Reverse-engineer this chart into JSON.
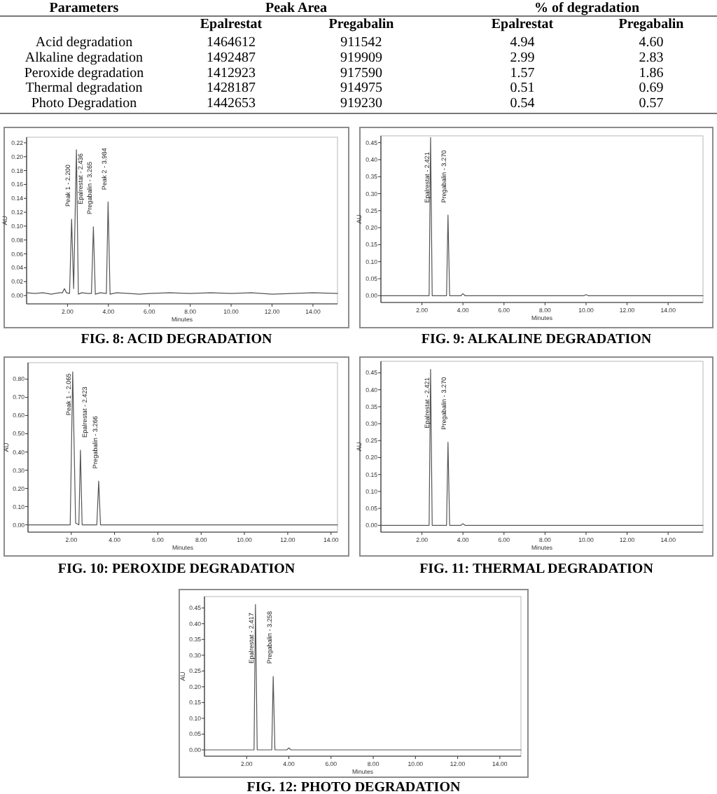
{
  "chart_data": [
    {
      "type": "other",
      "ylabel": "Parameters",
      "annotations": [
        "Peak Area",
        "% of degradation"
      ],
      "categories": [
        "Acid degradation",
        "Alkaline degradation",
        "Peroxide degradation",
        "Thermal degradation",
        "Photo Degradation"
      ],
      "series": [
        {
          "name": "Epalrestat",
          "values": [
            1464612,
            1492487,
            1412923,
            1428187,
            1442653
          ],
          "value_labels": [
            "1464612",
            "1492487",
            "1412923",
            "1428187",
            "1442653"
          ]
        },
        {
          "name": "Pregabalin",
          "values": [
            911542,
            919909,
            917590,
            914975,
            919230
          ],
          "value_labels": [
            "911542",
            "919909",
            "917590",
            "914975",
            "919230"
          ]
        },
        {
          "name": "Epalrestat",
          "values": [
            4.94,
            2.99,
            1.57,
            0.51,
            0.54
          ],
          "value_labels": [
            "4.94",
            "2.99",
            "1.57",
            "0.51",
            "0.54"
          ]
        },
        {
          "name": "Pregabalin",
          "values": [
            4.6,
            2.83,
            1.86,
            0.69,
            0.57
          ],
          "value_labels": [
            "4.60",
            "2.83",
            "1.86",
            "0.69",
            "0.57"
          ]
        }
      ]
    },
    {
      "type": "line",
      "title": "FIG. 8: ACID DEGRADATION",
      "xlabel": "Minutes",
      "ylabel": "AU",
      "xlim": [
        0,
        15.2
      ],
      "ylim": [
        -0.012,
        0.228
      ],
      "xticks": [
        {
          "value": 2,
          "label": "2.00"
        },
        {
          "value": 4,
          "label": "4.00"
        },
        {
          "value": 6,
          "label": "6.00"
        },
        {
          "value": 8,
          "label": "8.00"
        },
        {
          "value": 10,
          "label": "10.00"
        },
        {
          "value": 12,
          "label": "12.00"
        },
        {
          "value": 14,
          "label": "14.00"
        }
      ],
      "yticks": [
        {
          "value": 0,
          "label": "0.00"
        },
        {
          "value": 0.02,
          "label": "0.02"
        },
        {
          "value": 0.04,
          "label": "0.04"
        },
        {
          "value": 0.06,
          "label": "0.06"
        },
        {
          "value": 0.08,
          "label": "0.08"
        },
        {
          "value": 0.1,
          "label": "0.10"
        },
        {
          "value": 0.12,
          "label": "0.12"
        },
        {
          "value": 0.14,
          "label": "0.14"
        },
        {
          "value": 0.16,
          "label": "0.16"
        },
        {
          "value": 0.18,
          "label": "0.18"
        },
        {
          "value": 0.2,
          "label": "0.20"
        },
        {
          "value": 0.22,
          "label": "0.22"
        }
      ],
      "series": [
        {
          "color": "#555555",
          "x": [
            0,
            0.4,
            0.8,
            1.2,
            1.6,
            1.75,
            1.85,
            1.95,
            2.1,
            2.2,
            2.3,
            2.436,
            2.53,
            2.7,
            3.0,
            3.17,
            3.265,
            3.36,
            3.6,
            3.9,
            3.984,
            4.08,
            4.4,
            5,
            5.5,
            6,
            7,
            8,
            9,
            10,
            11,
            12,
            13,
            14,
            15.2
          ],
          "values": [
            0.004,
            0.003,
            0.004,
            0.002,
            0.004,
            0.004,
            0.01,
            0.004,
            0.003,
            0.11,
            0.01,
            0.21,
            0.002,
            0.004,
            0.003,
            0.003,
            0.099,
            0.002,
            0.004,
            0.003,
            0.135,
            0.002,
            0.004,
            0.003,
            0.002,
            0.003,
            0.004,
            0.003,
            0.004,
            0.003,
            0.004,
            0.002,
            0.003,
            0.004,
            0.003
          ]
        }
      ],
      "annotations": [
        {
          "text": "Peak 1 - 2.200",
          "x": 2.2,
          "y": 0.11
        },
        {
          "text": "Epalrestat - 2.436",
          "x": 2.436,
          "y": 0.21
        },
        {
          "text": "Pregabalin - 3.265",
          "x": 3.265,
          "y": 0.099
        },
        {
          "text": "Peak 2 - 3.984",
          "x": 3.984,
          "y": 0.135
        }
      ]
    },
    {
      "type": "line",
      "title": "FIG. 9: ALKALINE DEGRADATION",
      "xlabel": "Minutes",
      "ylabel": "AU",
      "xlim": [
        0,
        15.7
      ],
      "ylim": [
        -0.02,
        0.47
      ],
      "xticks": [
        {
          "value": 2,
          "label": "2.00"
        },
        {
          "value": 4,
          "label": "4.00"
        },
        {
          "value": 6,
          "label": "6.00"
        },
        {
          "value": 8,
          "label": "8.00"
        },
        {
          "value": 10,
          "label": "10.00"
        },
        {
          "value": 12,
          "label": "12.00"
        },
        {
          "value": 14,
          "label": "14.00"
        }
      ],
      "yticks": [
        {
          "value": 0,
          "label": "0.00"
        },
        {
          "value": 0.05,
          "label": "0.05"
        },
        {
          "value": 0.1,
          "label": "0.10"
        },
        {
          "value": 0.15,
          "label": "0.15"
        },
        {
          "value": 0.2,
          "label": "0.20"
        },
        {
          "value": 0.25,
          "label": "0.25"
        },
        {
          "value": 0.3,
          "label": "0.30"
        },
        {
          "value": 0.35,
          "label": "0.35"
        },
        {
          "value": 0.4,
          "label": "0.40"
        },
        {
          "value": 0.45,
          "label": "0.45"
        }
      ],
      "series": [
        {
          "color": "#555555",
          "x": [
            0,
            2.35,
            2.421,
            2.5,
            3.2,
            3.27,
            3.35,
            3.9,
            4.0,
            4.1,
            9.9,
            10,
            10.1,
            15.7
          ],
          "values": [
            0,
            0,
            0.465,
            0,
            0,
            0.237,
            0,
            0,
            0.006,
            0,
            0,
            0.003,
            0,
            0
          ]
        }
      ],
      "annotations": [
        {
          "text": "Epalrestat - 2.421",
          "x": 2.421,
          "y": 0.465
        },
        {
          "text": "Pregabalin - 3.270",
          "x": 3.27,
          "y": 0.237
        }
      ]
    },
    {
      "type": "line",
      "title": "FIG. 10: PEROXIDE DEGRADATION",
      "xlabel": "Minutes",
      "ylabel": "AU",
      "xlim": [
        0,
        14.3
      ],
      "ylim": [
        -0.04,
        0.89
      ],
      "xticks": [
        {
          "value": 2,
          "label": "2.00"
        },
        {
          "value": 4,
          "label": "4.00"
        },
        {
          "value": 6,
          "label": "6.00"
        },
        {
          "value": 8,
          "label": "8.00"
        },
        {
          "value": 10,
          "label": "10.00"
        },
        {
          "value": 12,
          "label": "12.00"
        },
        {
          "value": 14,
          "label": "14.00"
        }
      ],
      "yticks": [
        {
          "value": 0,
          "label": "0.00"
        },
        {
          "value": 0.1,
          "label": "0.10"
        },
        {
          "value": 0.2,
          "label": "0.20"
        },
        {
          "value": 0.3,
          "label": "0.30"
        },
        {
          "value": 0.4,
          "label": "0.40"
        },
        {
          "value": 0.5,
          "label": "0.50"
        },
        {
          "value": 0.6,
          "label": "0.60"
        },
        {
          "value": 0.7,
          "label": "0.70"
        },
        {
          "value": 0.8,
          "label": "0.80"
        }
      ],
      "series": [
        {
          "color": "#555555",
          "x": [
            0,
            1.95,
            2.065,
            2.2,
            2.35,
            2.423,
            2.5,
            3.18,
            3.266,
            3.35,
            4.0,
            14.3
          ],
          "values": [
            0,
            0,
            0.84,
            0.01,
            0,
            0.41,
            0,
            0,
            0.24,
            0,
            0,
            0
          ]
        }
      ],
      "annotations": [
        {
          "text": "Peak 1 - 2.065",
          "x": 2.065,
          "y": 0.84
        },
        {
          "text": "Epalrestat - 2.423",
          "x": 2.423,
          "y": 0.41
        },
        {
          "text": "Pregabalin - 3.266",
          "x": 3.266,
          "y": 0.24
        }
      ]
    },
    {
      "type": "line",
      "title": "FIG. 11: THERMAL DEGRADATION",
      "xlabel": "Minutes",
      "ylabel": "AU",
      "xlim": [
        0,
        15.7
      ],
      "ylim": [
        -0.02,
        0.484
      ],
      "xticks": [
        {
          "value": 2,
          "label": "2.00"
        },
        {
          "value": 4,
          "label": "4.00"
        },
        {
          "value": 6,
          "label": "6.00"
        },
        {
          "value": 8,
          "label": "8.00"
        },
        {
          "value": 10,
          "label": "10.00"
        },
        {
          "value": 12,
          "label": "12.00"
        },
        {
          "value": 14,
          "label": "14.00"
        }
      ],
      "yticks": [
        {
          "value": 0,
          "label": "0.00"
        },
        {
          "value": 0.05,
          "label": "0.05"
        },
        {
          "value": 0.1,
          "label": "0.10"
        },
        {
          "value": 0.15,
          "label": "0.15"
        },
        {
          "value": 0.2,
          "label": "0.20"
        },
        {
          "value": 0.25,
          "label": "0.25"
        },
        {
          "value": 0.3,
          "label": "0.30"
        },
        {
          "value": 0.35,
          "label": "0.35"
        },
        {
          "value": 0.4,
          "label": "0.40"
        },
        {
          "value": 0.45,
          "label": "0.45"
        }
      ],
      "series": [
        {
          "color": "#555555",
          "x": [
            0,
            2.35,
            2.421,
            2.5,
            3.2,
            3.27,
            3.35,
            3.9,
            4.0,
            4.1,
            15.7
          ],
          "values": [
            0,
            0,
            0.46,
            0,
            0,
            0.245,
            0,
            0,
            0.005,
            0,
            0
          ]
        }
      ],
      "annotations": [
        {
          "text": "Epalrestat - 2.421",
          "x": 2.421,
          "y": 0.46
        },
        {
          "text": "Pregabalin - 3.270",
          "x": 3.27,
          "y": 0.245
        }
      ]
    },
    {
      "type": "line",
      "title": "FIG. 12: PHOTO DEGRADATION",
      "xlabel": "Minutes",
      "ylabel": "AU",
      "xlim": [
        0,
        15
      ],
      "ylim": [
        -0.02,
        0.486
      ],
      "xticks": [
        {
          "value": 2,
          "label": "2.00"
        },
        {
          "value": 4,
          "label": "4.00"
        },
        {
          "value": 6,
          "label": "6.00"
        },
        {
          "value": 8,
          "label": "8.00"
        },
        {
          "value": 10,
          "label": "10.00"
        },
        {
          "value": 12,
          "label": "12.00"
        },
        {
          "value": 14,
          "label": "14.00"
        }
      ],
      "yticks": [
        {
          "value": 0,
          "label": "0.00"
        },
        {
          "value": 0.05,
          "label": "0.05"
        },
        {
          "value": 0.1,
          "label": "0.10"
        },
        {
          "value": 0.15,
          "label": "0.15"
        },
        {
          "value": 0.2,
          "label": "0.20"
        },
        {
          "value": 0.25,
          "label": "0.25"
        },
        {
          "value": 0.3,
          "label": "0.30"
        },
        {
          "value": 0.35,
          "label": "0.35"
        },
        {
          "value": 0.4,
          "label": "0.40"
        },
        {
          "value": 0.45,
          "label": "0.45"
        }
      ],
      "series": [
        {
          "color": "#555555",
          "x": [
            0,
            2.35,
            2.417,
            2.5,
            3.19,
            3.258,
            3.34,
            3.9,
            4.0,
            4.1,
            15
          ],
          "values": [
            0,
            0,
            0.461,
            0,
            0,
            0.233,
            0,
            0,
            0.006,
            0,
            0
          ]
        }
      ],
      "annotations": [
        {
          "text": "Epalrestat - 2.417",
          "x": 2.417,
          "y": 0.461
        },
        {
          "text": "Pregabalin - 3.258",
          "x": 3.258,
          "y": 0.233
        }
      ]
    }
  ]
}
